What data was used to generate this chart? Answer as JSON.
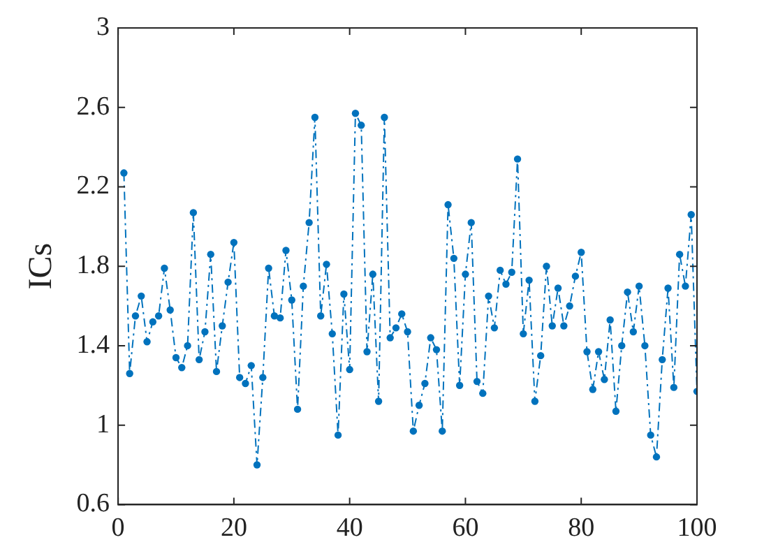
{
  "chart_data": {
    "type": "line",
    "ylabel": "ICs",
    "x": [
      1,
      2,
      3,
      4,
      5,
      6,
      7,
      8,
      9,
      10,
      11,
      12,
      13,
      14,
      15,
      16,
      17,
      18,
      19,
      20,
      21,
      22,
      23,
      24,
      25,
      26,
      27,
      28,
      29,
      30,
      31,
      32,
      33,
      34,
      35,
      36,
      37,
      38,
      39,
      40,
      41,
      42,
      43,
      44,
      45,
      46,
      47,
      48,
      49,
      50,
      51,
      52,
      53,
      54,
      55,
      56,
      57,
      58,
      59,
      60,
      61,
      62,
      63,
      64,
      65,
      66,
      67,
      68,
      69,
      70,
      71,
      72,
      73,
      74,
      75,
      76,
      77,
      78,
      79,
      80,
      81,
      82,
      83,
      84,
      85,
      86,
      87,
      88,
      89,
      90,
      91,
      92,
      93,
      94,
      95,
      96,
      97,
      98,
      99,
      100
    ],
    "series": [
      {
        "color": "#0072bd",
        "values": [
          2.27,
          1.26,
          1.55,
          1.65,
          1.42,
          1.52,
          1.55,
          1.79,
          1.58,
          1.34,
          1.29,
          1.4,
          2.07,
          1.33,
          1.47,
          1.86,
          1.27,
          1.5,
          1.72,
          1.92,
          1.24,
          1.21,
          1.3,
          0.8,
          1.24,
          1.79,
          1.55,
          1.54,
          1.88,
          1.63,
          1.08,
          1.7,
          2.02,
          2.55,
          1.55,
          1.81,
          1.46,
          0.95,
          1.66,
          1.28,
          2.57,
          2.51,
          1.37,
          1.76,
          1.12,
          2.55,
          1.44,
          1.49,
          1.56,
          1.47,
          0.97,
          1.1,
          1.21,
          1.44,
          1.38,
          0.97,
          2.11,
          1.84,
          1.2,
          1.76,
          2.02,
          1.22,
          1.16,
          1.65,
          1.49,
          1.78,
          1.71,
          1.77,
          2.34,
          1.46,
          1.73,
          1.12,
          1.35,
          1.8,
          1.5,
          1.69,
          1.5,
          1.6,
          1.75,
          1.87,
          1.37,
          1.18,
          1.37,
          1.23,
          1.53,
          1.07,
          1.4,
          1.67,
          1.47,
          1.7,
          1.4,
          0.95,
          0.84,
          1.33,
          1.69,
          1.19,
          1.86,
          1.7,
          2.06,
          1.17
        ]
      }
    ],
    "xlim": [
      0,
      100
    ],
    "xticks": [
      0,
      20,
      40,
      60,
      80,
      100
    ],
    "ylim": [
      0.6,
      3
    ],
    "yticks": [
      0.6,
      1,
      1.4,
      1.8,
      2.2,
      2.6,
      3
    ],
    "marker": "circle",
    "line_style": "dashed",
    "legend": false
  }
}
